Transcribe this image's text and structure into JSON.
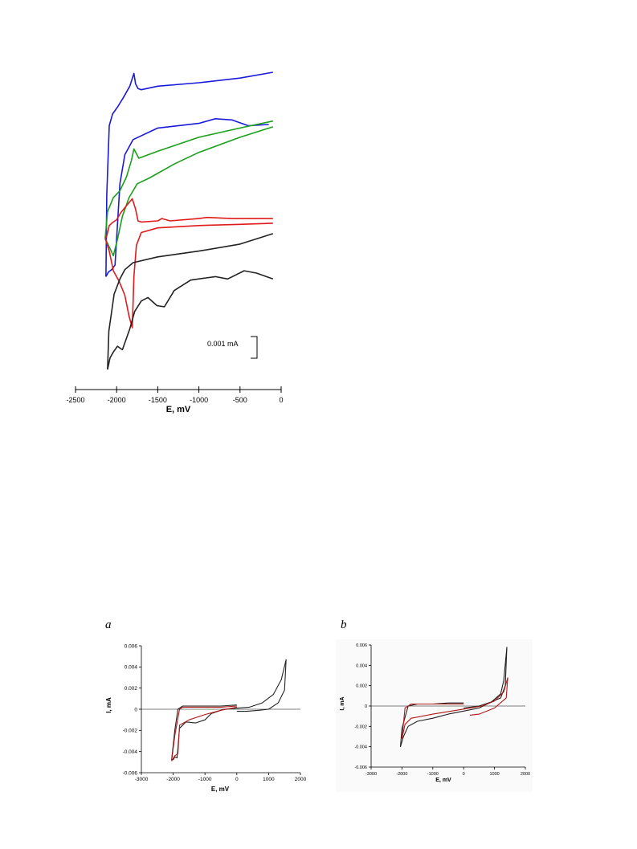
{
  "chart_data": [
    {
      "type": "line",
      "title": "",
      "xlabel": "E, mV",
      "ylabel": "",
      "xlim": [
        -2500,
        0
      ],
      "x_ticks": [
        -2500,
        -2000,
        -1500,
        -1000,
        -500,
        0
      ],
      "scale_bar": {
        "label": "0.001 mA",
        "value_mA": 0.001
      },
      "grid": false,
      "series": [
        {
          "color": "#1a1adb",
          "points": [
            [
              -2130,
              30
            ],
            [
              -2120,
              100
            ],
            [
              -2090,
              160
            ],
            [
              -2050,
              170
            ],
            [
              -1990,
              176
            ],
            [
              -1920,
              184
            ],
            [
              -1840,
              194
            ],
            [
              -1790,
              205
            ],
            [
              -1770,
              196
            ],
            [
              -1740,
              192
            ],
            [
              -1700,
              191
            ],
            [
              -1500,
              194
            ],
            [
              -1000,
              197
            ],
            [
              -500,
              201
            ],
            [
              -100,
              206
            ]
          ]
        },
        {
          "color": "#1a1adb",
          "points": [
            [
              -2130,
              30
            ],
            [
              -2100,
              34
            ],
            [
              -2060,
              36
            ],
            [
              -2020,
              40
            ],
            [
              -1960,
              110
            ],
            [
              -1900,
              135
            ],
            [
              -1800,
              148
            ],
            [
              -1500,
              158
            ],
            [
              -1000,
              162
            ],
            [
              -800,
              166
            ],
            [
              -600,
              165
            ],
            [
              -400,
              160
            ],
            [
              -150,
              161
            ]
          ]
        },
        {
          "color": "#1aa01a",
          "points": [
            [
              -2140,
              63
            ],
            [
              -2110,
              86
            ],
            [
              -2040,
              98
            ],
            [
              -1960,
              104
            ],
            [
              -1880,
              116
            ],
            [
              -1820,
              130
            ],
            [
              -1790,
              140
            ],
            [
              -1760,
              136
            ],
            [
              -1730,
              132
            ],
            [
              -1500,
              138
            ],
            [
              -1000,
              150
            ],
            [
              -500,
              158
            ],
            [
              -100,
              164
            ]
          ]
        },
        {
          "color": "#1aa01a",
          "points": [
            [
              -2140,
              63
            ],
            [
              -2100,
              57
            ],
            [
              -2040,
              48
            ],
            [
              -1990,
              62
            ],
            [
              -1930,
              82
            ],
            [
              -1850,
              98
            ],
            [
              -1750,
              110
            ],
            [
              -1600,
              115
            ],
            [
              -1300,
              127
            ],
            [
              -1000,
              137
            ],
            [
              -500,
              150
            ],
            [
              -100,
              159
            ]
          ]
        },
        {
          "color": "#e01a1a",
          "points": [
            [
              -2140,
              63
            ],
            [
              -2120,
              65
            ],
            [
              -2090,
              74
            ],
            [
              -2060,
              76
            ],
            [
              -2040,
              77
            ],
            [
              -2000,
              79
            ],
            [
              -1950,
              85
            ],
            [
              -1870,
              92
            ],
            [
              -1810,
              97
            ],
            [
              -1770,
              88
            ],
            [
              -1740,
              78
            ],
            [
              -1700,
              77
            ],
            [
              -1500,
              78
            ],
            [
              -1450,
              80
            ],
            [
              -1350,
              78
            ],
            [
              -1000,
              80
            ],
            [
              -900,
              81
            ],
            [
              -600,
              80
            ],
            [
              -100,
              80
            ]
          ]
        },
        {
          "color": "#e01a1a",
          "points": [
            [
              -2140,
              63
            ],
            [
              -2090,
              52
            ],
            [
              -2040,
              35
            ],
            [
              -1970,
              26
            ],
            [
              -1900,
              14
            ],
            [
              -1850,
              -4
            ],
            [
              -1810,
              -14
            ],
            [
              -1790,
              30
            ],
            [
              -1760,
              57
            ],
            [
              -1700,
              68
            ],
            [
              -1500,
              72
            ],
            [
              -1000,
              74
            ],
            [
              -500,
              75
            ],
            [
              -100,
              76
            ]
          ]
        },
        {
          "color": "#222222",
          "points": [
            [
              -2110,
              -50
            ],
            [
              -2095,
              -17
            ],
            [
              -2030,
              15
            ],
            [
              -1960,
              28
            ],
            [
              -1900,
              36
            ],
            [
              -1800,
              42
            ],
            [
              -1500,
              47
            ],
            [
              -1000,
              52
            ],
            [
              -500,
              58
            ],
            [
              -100,
              67
            ]
          ]
        },
        {
          "color": "#222222",
          "points": [
            [
              -2110,
              -50
            ],
            [
              -2080,
              -40
            ],
            [
              -2040,
              -35
            ],
            [
              -1990,
              -30
            ],
            [
              -1930,
              -33
            ],
            [
              -1840,
              -15
            ],
            [
              -1780,
              0
            ],
            [
              -1700,
              9
            ],
            [
              -1620,
              12
            ],
            [
              -1510,
              5
            ],
            [
              -1420,
              4
            ],
            [
              -1300,
              18
            ],
            [
              -1100,
              27
            ],
            [
              -800,
              30
            ],
            [
              -650,
              28
            ],
            [
              -450,
              35
            ],
            [
              -300,
              33
            ],
            [
              -100,
              28
            ]
          ]
        }
      ]
    },
    {
      "type": "line",
      "panel_label": "a",
      "title": "",
      "xlabel": "E, mV",
      "ylabel": "I, mA",
      "xlim": [
        -3000,
        2000
      ],
      "ylim": [
        -0.006,
        0.006
      ],
      "x_ticks": [
        -3000,
        -2000,
        -1000,
        0,
        1000,
        2000
      ],
      "y_ticks": [
        -0.006,
        -0.004,
        -0.002,
        0,
        0.002,
        0.004,
        0.006
      ],
      "x_tick_labels": [
        "-3000",
        "-2000",
        "-1000",
        "0",
        "1000",
        "2000"
      ],
      "y_tick_labels": [
        "-0.006",
        "-0.004",
        "-0.002",
        "0",
        "0.002",
        "0.004",
        "0.006"
      ],
      "grid": false,
      "series": [
        {
          "color": "#222222",
          "points": [
            [
              -2000,
              -0.0048
            ],
            [
              -1950,
              -0.0045
            ],
            [
              -1880,
              -0.0046
            ],
            [
              -1800,
              -0.0018
            ],
            [
              -1600,
              -0.0012
            ],
            [
              -1300,
              -0.0013
            ],
            [
              -1000,
              -0.001
            ],
            [
              -800,
              -0.0004
            ],
            [
              -400,
              0
            ],
            [
              0,
              0.0001
            ],
            [
              400,
              0.0002
            ],
            [
              800,
              0.0006
            ],
            [
              1150,
              0.0014
            ],
            [
              1400,
              0.0028
            ],
            [
              1550,
              0.0047
            ]
          ]
        },
        {
          "color": "#222222",
          "points": [
            [
              1550,
              0.0047
            ],
            [
              1500,
              0.0018
            ],
            [
              1300,
              0.0006
            ],
            [
              1000,
              0
            ],
            [
              700,
              -0.0001
            ],
            [
              300,
              -0.0002
            ],
            [
              0,
              -0.0002
            ]
          ]
        },
        {
          "color": "#222222",
          "points": [
            [
              0,
              0.0004
            ],
            [
              -500,
              0.0003
            ],
            [
              -1000,
              0.0003
            ],
            [
              -1500,
              0.0003
            ],
            [
              -1700,
              0.0003
            ],
            [
              -1850,
              0
            ],
            [
              -1950,
              -0.002
            ],
            [
              -2050,
              -0.0048
            ]
          ]
        },
        {
          "color": "#b01818",
          "points": [
            [
              -2050,
              -0.0049
            ],
            [
              -1950,
              -0.0044
            ],
            [
              -1850,
              -0.0042
            ],
            [
              -1800,
              -0.0015
            ],
            [
              -1500,
              -0.001
            ],
            [
              -1000,
              -0.0005
            ],
            [
              -500,
              -0.0001
            ],
            [
              0,
              0.0002
            ]
          ]
        },
        {
          "color": "#b01818",
          "points": [
            [
              0,
              0.0003
            ],
            [
              -500,
              0.0002
            ],
            [
              -1000,
              0.0002
            ],
            [
              -1500,
              0.0002
            ],
            [
              -1700,
              0.0002
            ],
            [
              -1800,
              0
            ],
            [
              -1950,
              -0.0025
            ],
            [
              -2050,
              -0.0049
            ]
          ]
        }
      ]
    },
    {
      "type": "line",
      "panel_label": "b",
      "title": "",
      "xlabel": "E, mV",
      "ylabel": "I, mA",
      "xlim": [
        -3000,
        2000
      ],
      "ylim": [
        -0.006,
        0.006
      ],
      "x_ticks": [
        -3000,
        -2000,
        -1000,
        0,
        1000,
        2000
      ],
      "y_ticks": [
        -0.006,
        -0.004,
        -0.002,
        0,
        0.002,
        0.004,
        0.006
      ],
      "x_tick_labels": [
        "-3000",
        "-2000",
        "-1000",
        "0",
        "1000",
        "2000"
      ],
      "y_tick_labels": [
        "-0.006",
        "-0.004",
        "-0.002",
        "0",
        "0.002",
        "0.004",
        "0.006"
      ],
      "grid": false,
      "series": [
        {
          "color": "#222222",
          "points": [
            [
              -2050,
              -0.004
            ],
            [
              -1950,
              -0.003
            ],
            [
              -1800,
              -0.002
            ],
            [
              -1500,
              -0.0015
            ],
            [
              -1000,
              -0.0012
            ],
            [
              -500,
              -0.0008
            ],
            [
              0,
              -0.0005
            ],
            [
              500,
              -0.0002
            ],
            [
              900,
              0.0004
            ],
            [
              1200,
              0.0012
            ],
            [
              1300,
              0.0025
            ],
            [
              1400,
              0.0058
            ]
          ]
        },
        {
          "color": "#222222",
          "points": [
            [
              1400,
              0.0058
            ],
            [
              1350,
              0.002
            ],
            [
              1200,
              0.0008
            ],
            [
              900,
              0.0004
            ],
            [
              500,
              0
            ],
            [
              0,
              -0.0002
            ]
          ]
        },
        {
          "color": "#222222",
          "points": [
            [
              0,
              0.0003
            ],
            [
              -500,
              0.0003
            ],
            [
              -1000,
              0.0002
            ],
            [
              -1500,
              0.0002
            ],
            [
              -1800,
              0
            ],
            [
              -2000,
              -0.0022
            ],
            [
              -2050,
              -0.004
            ]
          ]
        },
        {
          "color": "#b01818",
          "points": [
            [
              -2000,
              -0.0032
            ],
            [
              -1900,
              -0.0018
            ],
            [
              -1700,
              -0.0012
            ],
            [
              -1000,
              -0.0008
            ],
            [
              0,
              -0.0003
            ],
            [
              600,
              0
            ],
            [
              1000,
              0.0005
            ],
            [
              1300,
              0.0014
            ],
            [
              1430,
              0.0028
            ]
          ]
        },
        {
          "color": "#b01818",
          "points": [
            [
              1430,
              0.0028
            ],
            [
              1380,
              0.0008
            ],
            [
              1000,
              -0.0002
            ],
            [
              500,
              -0.0008
            ],
            [
              200,
              -0.0009
            ]
          ]
        },
        {
          "color": "#b01818",
          "points": [
            [
              0,
              0.0002
            ],
            [
              -1000,
              0.0002
            ],
            [
              -1700,
              0.0002
            ],
            [
              -1900,
              -0.0002
            ],
            [
              -2000,
              -0.0032
            ]
          ]
        }
      ]
    }
  ]
}
